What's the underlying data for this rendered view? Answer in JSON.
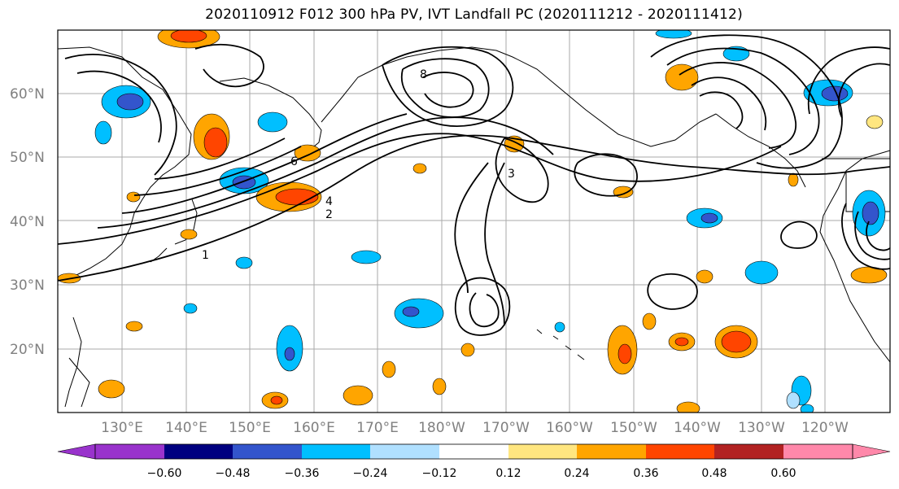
{
  "title": "2020110912 F012 300 hPa PV, IVT Landfall PC (2020111212 - 2020111412)",
  "map": {
    "lat_labels": [
      "60°N",
      "50°N",
      "40°N",
      "30°N",
      "20°N"
    ],
    "lon_labels": [
      "130°E",
      "140°E",
      "150°E",
      "160°E",
      "170°E",
      "180°W",
      "170°W",
      "160°W",
      "150°W",
      "140°W",
      "130°W",
      "120°W"
    ],
    "contour_labels": [
      "1",
      "2",
      "3",
      "4",
      "6",
      "8"
    ]
  },
  "colorbar": {
    "tick_labels": [
      "−0.60",
      "−0.48",
      "−0.36",
      "−0.24",
      "−0.12",
      "0.12",
      "0.24",
      "0.36",
      "0.48",
      "0.60"
    ],
    "colors": [
      "#9933cc",
      "#000080",
      "#3355cc",
      "#00bfff",
      "#b0e0ff",
      "#ffffff",
      "#ffe680",
      "#ffa500",
      "#ff4500",
      "#b22222",
      "#ff88aa"
    ]
  }
}
